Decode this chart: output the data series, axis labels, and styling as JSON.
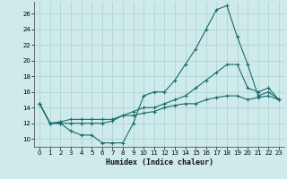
{
  "title": "",
  "xlabel": "Humidex (Indice chaleur)",
  "ylabel": "",
  "bg_color": "#ceeaea",
  "grid_color": "#b0d4d4",
  "line_color": "#1a6b6b",
  "xlim": [
    -0.5,
    23.5
  ],
  "ylim": [
    9.0,
    27.5
  ],
  "yticks": [
    10,
    12,
    14,
    16,
    18,
    20,
    22,
    24,
    26
  ],
  "xticks": [
    0,
    1,
    2,
    3,
    4,
    5,
    6,
    7,
    8,
    9,
    10,
    11,
    12,
    13,
    14,
    15,
    16,
    17,
    18,
    19,
    20,
    21,
    22,
    23
  ],
  "line1_x": [
    0,
    1,
    2,
    3,
    4,
    5,
    6,
    7,
    8,
    9,
    10,
    11,
    12,
    13,
    14,
    15,
    16,
    17,
    18,
    19,
    20,
    21,
    22,
    23
  ],
  "line1_y": [
    14.5,
    12.0,
    12.0,
    11.0,
    10.5,
    10.5,
    9.5,
    9.5,
    9.5,
    12.0,
    15.5,
    16.0,
    16.0,
    17.5,
    19.5,
    21.5,
    24.0,
    26.5,
    27.0,
    23.0,
    19.5,
    15.5,
    16.0,
    15.0
  ],
  "line2_x": [
    0,
    1,
    2,
    3,
    4,
    5,
    6,
    7,
    8,
    9,
    10,
    11,
    12,
    13,
    14,
    15,
    16,
    17,
    18,
    19,
    20,
    21,
    22,
    23
  ],
  "line2_y": [
    14.5,
    12.0,
    12.2,
    12.5,
    12.5,
    12.5,
    12.5,
    12.5,
    13.0,
    13.5,
    14.0,
    14.0,
    14.5,
    15.0,
    15.5,
    16.5,
    17.5,
    18.5,
    19.5,
    19.5,
    16.5,
    16.0,
    16.5,
    15.0
  ],
  "line3_x": [
    0,
    1,
    2,
    3,
    4,
    5,
    6,
    7,
    8,
    9,
    10,
    11,
    12,
    13,
    14,
    15,
    16,
    17,
    18,
    19,
    20,
    21,
    22,
    23
  ],
  "line3_y": [
    14.5,
    12.0,
    12.0,
    12.0,
    12.0,
    12.0,
    12.0,
    12.3,
    13.0,
    13.0,
    13.3,
    13.5,
    14.0,
    14.3,
    14.5,
    14.5,
    15.0,
    15.3,
    15.5,
    15.5,
    15.0,
    15.3,
    15.5,
    15.0
  ]
}
